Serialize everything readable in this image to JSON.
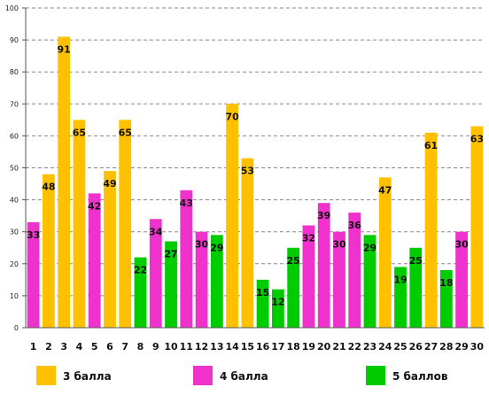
{
  "chart_data": {
    "type": "bar",
    "categories": [
      "1",
      "2",
      "3",
      "4",
      "5",
      "6",
      "7",
      "8",
      "9",
      "10",
      "11",
      "12",
      "13",
      "14",
      "15",
      "16",
      "17",
      "18",
      "19",
      "20",
      "21",
      "22",
      "23",
      "24",
      "25",
      "26",
      "27",
      "28",
      "29",
      "30"
    ],
    "values": [
      33,
      48,
      91,
      65,
      42,
      49,
      65,
      22,
      34,
      27,
      43,
      30,
      29,
      70,
      53,
      15,
      12,
      25,
      32,
      39,
      30,
      36,
      29,
      47,
      19,
      25,
      61,
      18,
      30,
      63
    ],
    "groups": [
      1,
      0,
      0,
      0,
      1,
      0,
      0,
      2,
      1,
      2,
      1,
      1,
      2,
      0,
      0,
      2,
      2,
      2,
      1,
      1,
      1,
      1,
      2,
      0,
      2,
      2,
      0,
      2,
      1,
      0
    ],
    "legend": [
      {
        "name": "3 балла",
        "color": "#FFC000"
      },
      {
        "name": "4 балла",
        "color": "#F032CC"
      },
      {
        "name": "5 баллов",
        "color": "#00CC00"
      }
    ],
    "yticks": [
      0,
      10,
      20,
      30,
      40,
      50,
      60,
      70,
      80,
      90,
      100
    ],
    "ylim": [
      0,
      100
    ],
    "grid": true,
    "legend_position": "bottom"
  }
}
